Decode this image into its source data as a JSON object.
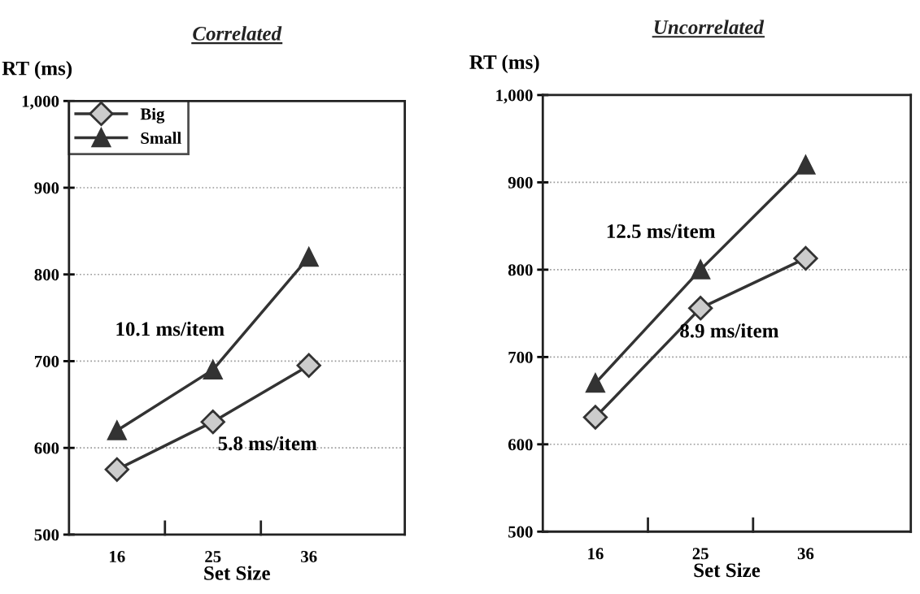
{
  "chart_data": [
    {
      "type": "line",
      "title": "Correlated",
      "ylabel": "RT (ms)",
      "xlabel": "Set Size",
      "categories": [
        "16",
        "25",
        "36"
      ],
      "series": [
        {
          "name": "Big",
          "color": "#333333",
          "marker": "diamond",
          "values": [
            575,
            630,
            695
          ]
        },
        {
          "name": "Small",
          "color": "#333333",
          "marker": "triangle",
          "values": [
            620,
            690,
            820
          ]
        }
      ],
      "ylim": [
        500,
        1000
      ],
      "yticks": [
        500,
        600,
        700,
        800,
        900,
        {
          "value": 1000,
          "label": "1,000"
        }
      ],
      "grid": "y",
      "legend": "top left",
      "annotations": [
        {
          "text": "10.1 ms/item",
          "x": "25",
          "y": 690
        },
        {
          "text": "5.8 ms/item",
          "x": "25",
          "y": 630
        }
      ]
    },
    {
      "type": "line",
      "title": "Uncorrelated",
      "ylabel": "RT (ms)",
      "xlabel": "Set Size",
      "categories": [
        "16",
        "25",
        "36"
      ],
      "series": [
        {
          "color": "#333333",
          "marker": "diamond",
          "values": [
            631,
            756,
            813
          ]
        },
        {
          "color": "#333333",
          "marker": "triangle",
          "values": [
            670,
            800,
            920
          ]
        }
      ],
      "ylim": [
        500,
        1000
      ],
      "yticks": [
        500,
        600,
        700,
        800,
        900,
        {
          "value": 1000,
          "label": "1,000"
        }
      ],
      "grid": "y",
      "annotations": [
        {
          "text": "12.5 ms/item",
          "x": "25",
          "y": 800
        },
        {
          "text": "8.9 ms/item",
          "x": "25",
          "y": 756
        }
      ]
    }
  ]
}
